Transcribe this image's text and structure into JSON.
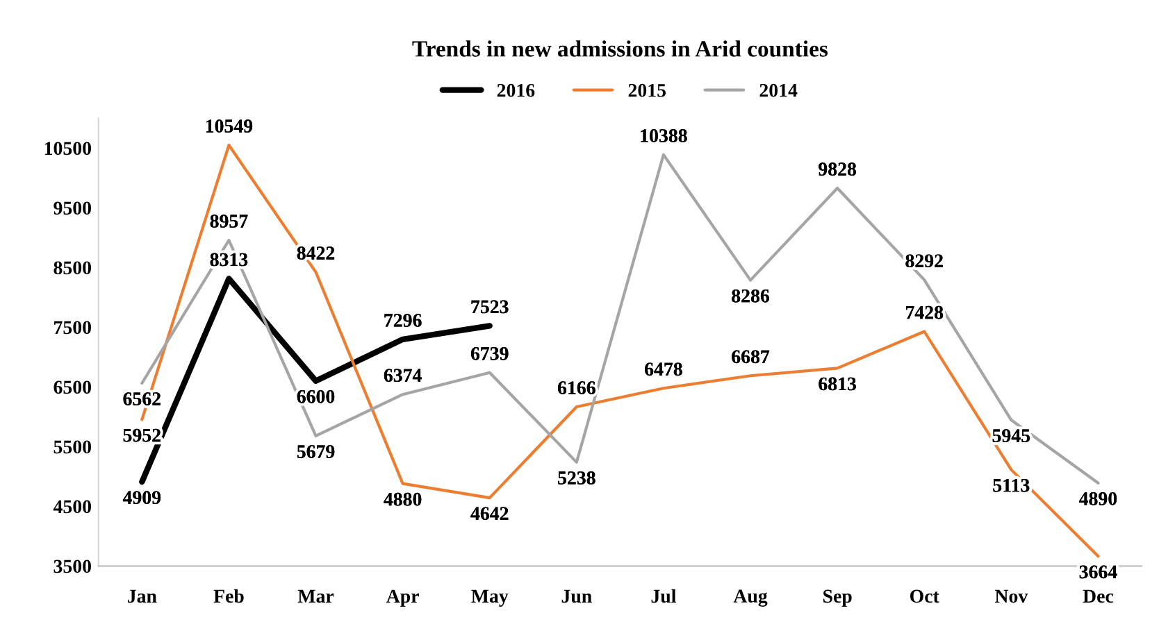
{
  "chart_data": {
    "type": "line",
    "title": "Trends in new admissions in Arid counties",
    "categories": [
      "Jan",
      "Feb",
      "Mar",
      "Apr",
      "May",
      "Jun",
      "Jul",
      "Aug",
      "Sep",
      "Oct",
      "Nov",
      "Dec"
    ],
    "series": [
      {
        "name": "2016",
        "color": "#000000",
        "values": [
          4909,
          8313,
          6600,
          7296,
          7523,
          null,
          null,
          null,
          null,
          null,
          null,
          null
        ]
      },
      {
        "name": "2015",
        "color": "#ed7d31",
        "values": [
          5952,
          10549,
          8422,
          4880,
          4642,
          6166,
          6478,
          6687,
          6813,
          7428,
          5113,
          3664
        ]
      },
      {
        "name": "2014",
        "color": "#a5a5a5",
        "values": [
          6562,
          8957,
          5679,
          6374,
          6739,
          5238,
          10388,
          8286,
          9828,
          8292,
          5945,
          4890
        ]
      }
    ],
    "ylim": [
      3500,
      11000
    ],
    "yticks": [
      3500,
      4500,
      5500,
      6500,
      7500,
      8500,
      9500,
      10500
    ],
    "grid": false,
    "legend": "top",
    "data_labels": true,
    "line_style": "solid"
  }
}
